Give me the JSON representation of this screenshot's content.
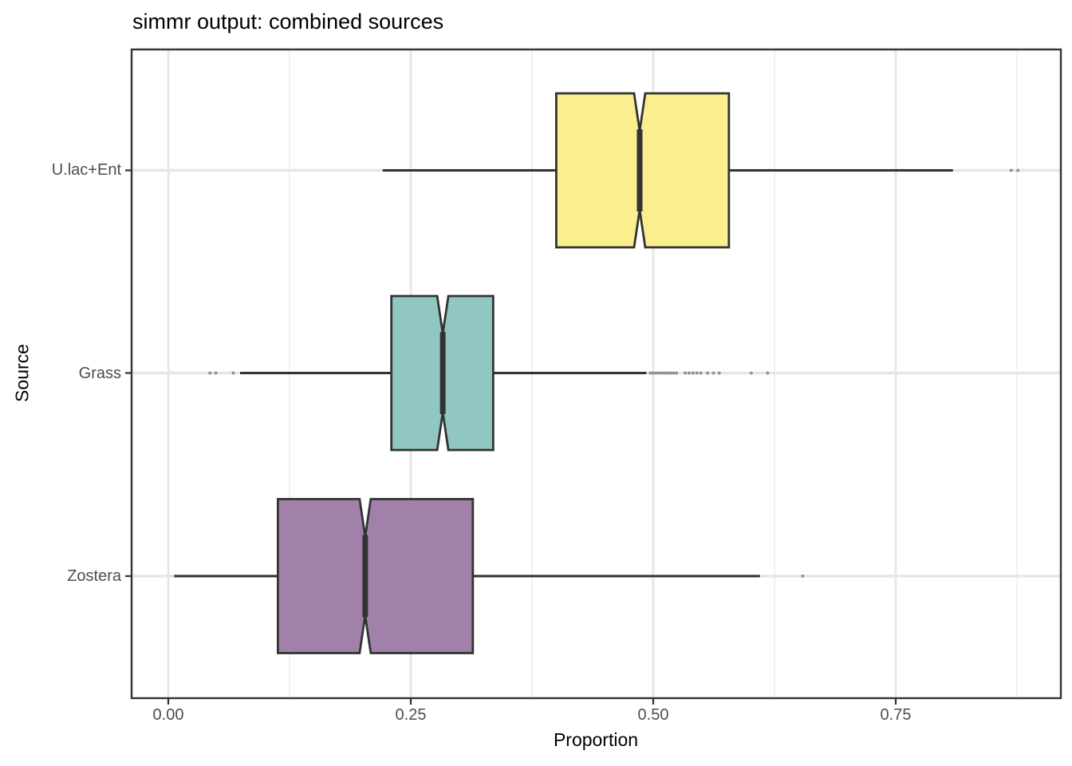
{
  "title": "simmr output: combined sources",
  "x_axis": {
    "label": "Proportion",
    "ticks": [
      "0.00",
      "0.25",
      "0.50",
      "0.75"
    ],
    "tick_values": [
      0.0,
      0.25,
      0.5,
      0.75
    ],
    "minor_values": [
      0.125,
      0.375,
      0.625,
      0.875
    ]
  },
  "y_axis": {
    "label": "Source",
    "categories": [
      "U.lac+Ent",
      "Grass",
      "Zostera"
    ]
  },
  "chart_data": {
    "type": "boxplot",
    "orientation": "horizontal",
    "notched": true,
    "title": "simmr output: combined sources",
    "xlabel": "Proportion",
    "ylabel": "Source",
    "xlim": [
      -0.04,
      0.92
    ],
    "grid": "on",
    "categories": [
      "U.lac+Ent",
      "Grass",
      "Zostera"
    ],
    "groups": [
      {
        "name": "U.lac+Ent",
        "fill_color": "#FBEE8E",
        "whisker_low": 0.221,
        "q1": 0.4,
        "median": 0.486,
        "q3": 0.578,
        "whisker_high": 0.809,
        "outliers": [
          0.869,
          0.876
        ]
      },
      {
        "name": "Grass",
        "fill_color": "#90C7C3",
        "whisker_low": 0.074,
        "q1": 0.23,
        "median": 0.283,
        "q3": 0.335,
        "whisker_high": 0.493,
        "outliers": [
          0.043,
          0.049,
          0.067,
          0.497,
          0.5,
          0.503,
          0.506,
          0.509,
          0.512,
          0.515,
          0.518,
          0.521,
          0.524,
          0.533,
          0.537,
          0.541,
          0.545,
          0.549,
          0.556,
          0.562,
          0.568,
          0.601,
          0.618
        ]
      },
      {
        "name": "Zostera",
        "fill_color": "#A181A9",
        "whisker_low": 0.006,
        "q1": 0.113,
        "median": 0.203,
        "q3": 0.314,
        "whisker_high": 0.61,
        "outliers": [
          0.654
        ]
      }
    ],
    "colors": {
      "box_border": "#333333",
      "median_line": "#333333",
      "whisker": "#333333",
      "outlier": "#4D4D4D",
      "panel_border": "#333333",
      "grid_major": "#E6E6E6",
      "grid_minor": "#F1F1F1",
      "tick_text": "#4D4D4D"
    }
  }
}
